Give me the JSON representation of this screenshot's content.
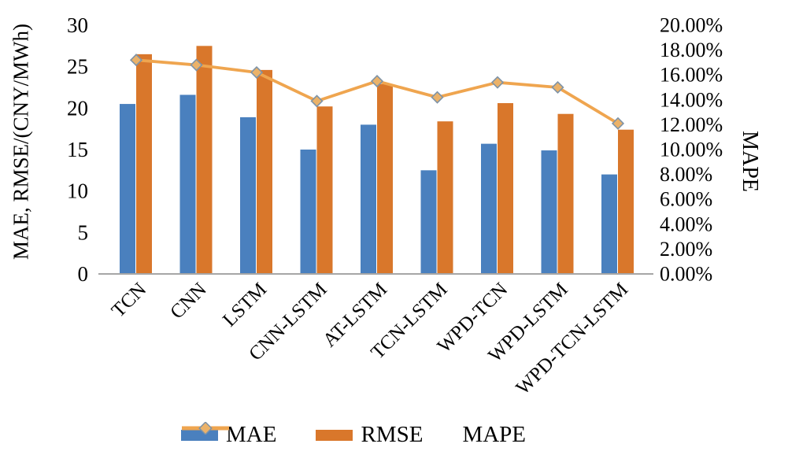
{
  "chart_data": {
    "type": "combo-bar-line",
    "title": "",
    "categories": [
      "TCN",
      "CNN",
      "LSTM",
      "CNN-LSTM",
      "AT-LSTM",
      "TCN-LSTM",
      "WPD-TCN",
      "WPD-LSTM",
      "WPD-TCN-LSTM"
    ],
    "series": [
      {
        "name": "MAE",
        "type": "bar",
        "axis": "left",
        "values": [
          20.5,
          21.6,
          18.9,
          15.0,
          18.0,
          12.5,
          15.7,
          14.9,
          12.0
        ]
      },
      {
        "name": "RMSE",
        "type": "bar",
        "axis": "left",
        "values": [
          26.5,
          27.5,
          24.6,
          20.2,
          22.9,
          18.4,
          20.6,
          19.3,
          17.4
        ]
      },
      {
        "name": "MAPE",
        "type": "line",
        "axis": "right",
        "marker": "diamond",
        "values_percent": [
          17.2,
          16.8,
          16.2,
          13.9,
          15.5,
          14.2,
          15.4,
          15.0,
          12.1
        ]
      }
    ],
    "left_axis": {
      "title": "MAE, RMSE/(CNY/MWh)",
      "min": 0,
      "max": 30,
      "step": 5,
      "tick_values": [
        0,
        5,
        10,
        15,
        20,
        25,
        30
      ],
      "tick_labels": [
        "0",
        "5",
        "10",
        "15",
        "20",
        "25",
        "30"
      ]
    },
    "right_axis": {
      "title": "MAPE",
      "min": 0,
      "max": 20,
      "step": 2,
      "tick_values": [
        0,
        2,
        4,
        6,
        8,
        10,
        12,
        14,
        16,
        18,
        20
      ],
      "tick_labels": [
        "0.00%",
        "2.00%",
        "4.00%",
        "6.00%",
        "8.00%",
        "10.00%",
        "12.00%",
        "14.00%",
        "16.00%",
        "18.00%",
        "20.00%"
      ]
    },
    "legend": {
      "position": "bottom",
      "items": [
        "MAE",
        "RMSE",
        "MAPE"
      ]
    },
    "grid": false,
    "x_label_rotation_deg": 45
  },
  "colors": {
    "mae_bar": "#4A80BE",
    "rmse_bar": "#D9772B",
    "mape_line": "#EFA54F",
    "mape_marker_fill": "#EBB269",
    "mape_marker_stroke": "#7E93A7",
    "axis_line": "#A6A6A6",
    "text": "#000000",
    "background": "#FFFFFF"
  }
}
